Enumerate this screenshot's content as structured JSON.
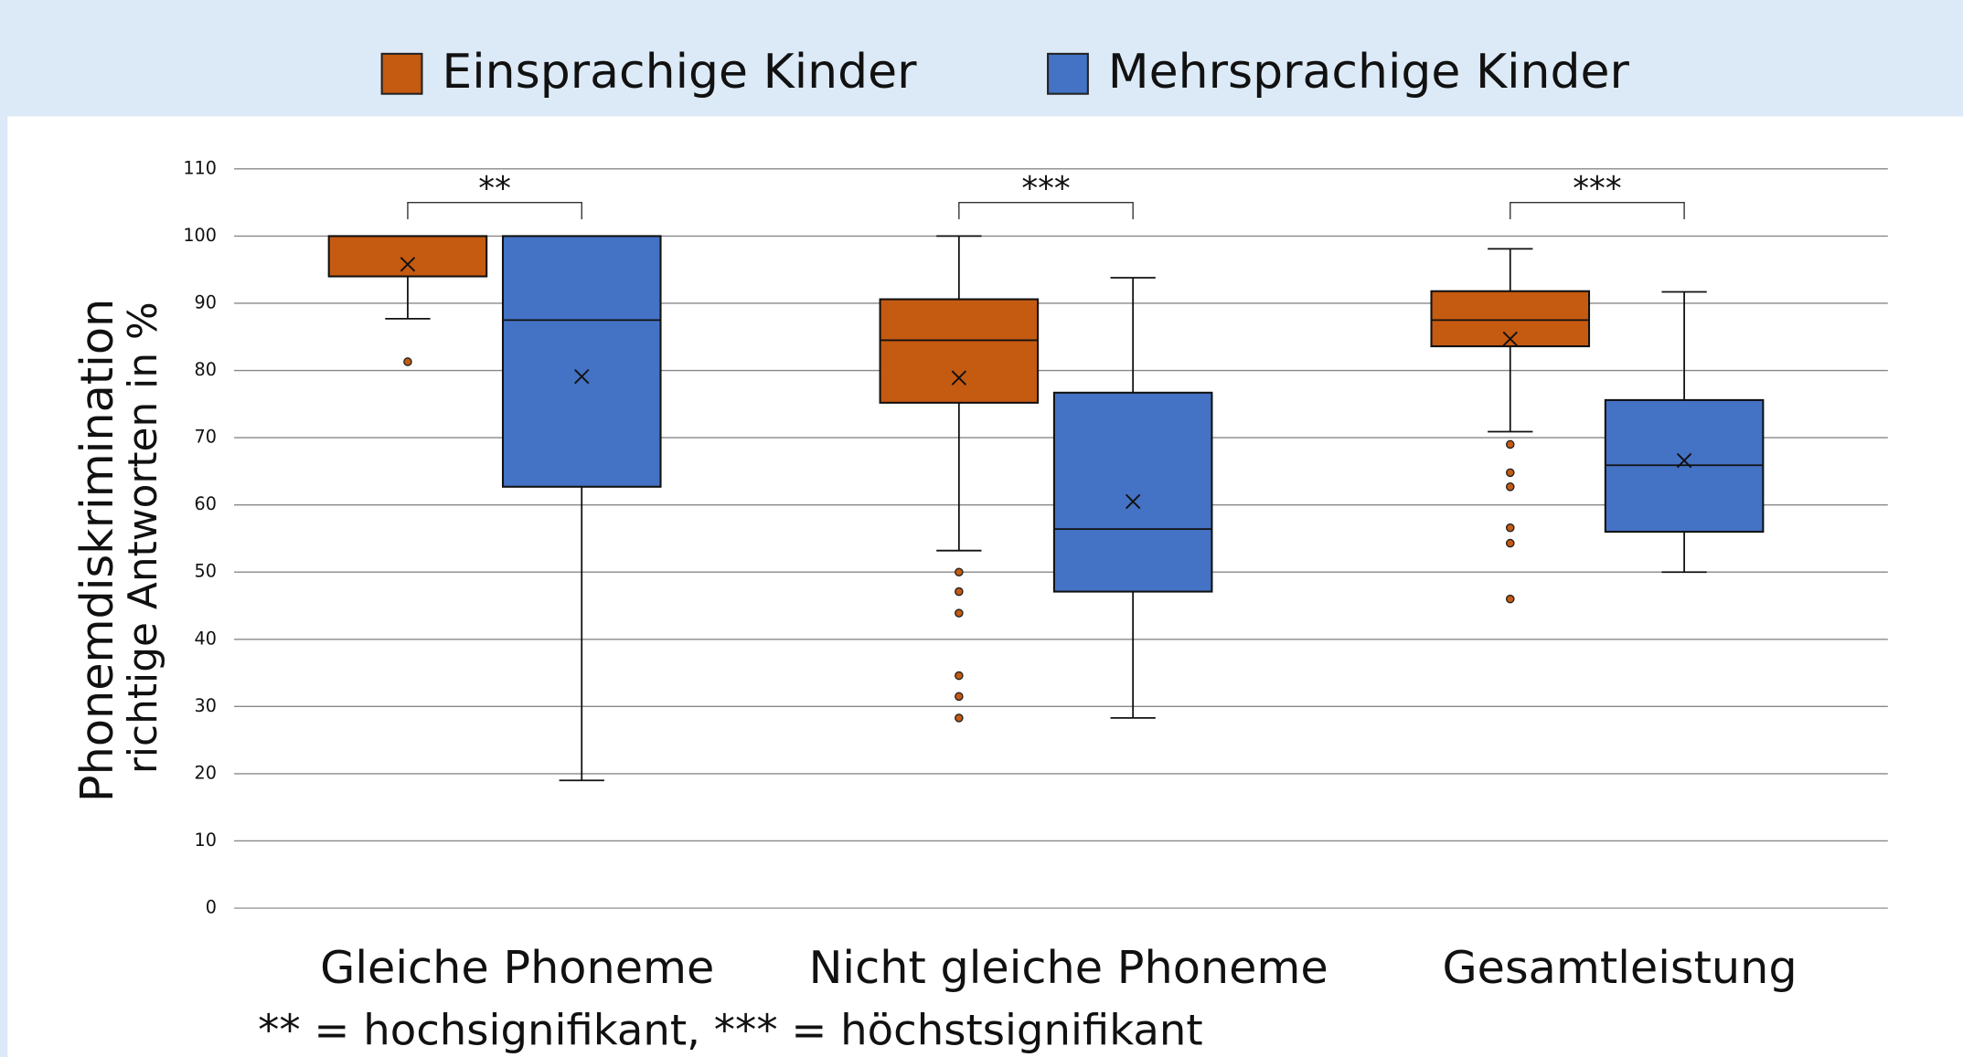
{
  "chart_data": {
    "type": "box",
    "ylabel": [
      "Phonemdiskrimination",
      "richtige Antworten in %"
    ],
    "categories": [
      "Gleiche Phoneme",
      "Nicht gleiche Phoneme",
      "Gesamtleistung"
    ],
    "annotations": [
      "**",
      "***",
      "***"
    ],
    "note": "** = hochsignifikant, *** = höchstsignifikant",
    "ylim": [
      0,
      110
    ],
    "yticks": [
      0,
      10,
      20,
      30,
      40,
      50,
      60,
      70,
      80,
      90,
      100,
      110
    ],
    "grid": true,
    "legend": "top",
    "series": [
      {
        "name": "Einsprachige Kinder",
        "color": "#c55a11",
        "boxes": [
          {
            "min": 87.7,
            "q1": 94,
            "median": 100,
            "q3": 100,
            "max": 100,
            "mean": 95.8,
            "outliers": [
              81.3
            ]
          },
          {
            "min": 53.2,
            "q1": 75.2,
            "median": 84.5,
            "q3": 90.6,
            "max": 100,
            "mean": 78.9,
            "outliers": [
              50,
              47.1,
              43.9,
              34.6,
              31.5,
              28.3
            ]
          },
          {
            "min": 70.9,
            "q1": 83.6,
            "median": 87.5,
            "q3": 91.8,
            "max": 98.1,
            "mean": 84.7,
            "outliers": [
              69,
              64.8,
              62.7,
              56.6,
              54.3,
              46
            ]
          }
        ]
      },
      {
        "name": "Mehrsprachige Kinder",
        "color": "#4472c4",
        "boxes": [
          {
            "min": 19,
            "q1": 62.7,
            "median": 87.5,
            "q3": 100,
            "max": 100,
            "mean": 79.1,
            "outliers": []
          },
          {
            "min": 28.3,
            "q1": 47.1,
            "median": 56.4,
            "q3": 76.7,
            "max": 93.8,
            "mean": 60.5,
            "outliers": []
          },
          {
            "min": 50,
            "q1": 56,
            "median": 65.9,
            "q3": 75.6,
            "max": 91.7,
            "mean": 66.6,
            "outliers": []
          }
        ]
      }
    ]
  }
}
